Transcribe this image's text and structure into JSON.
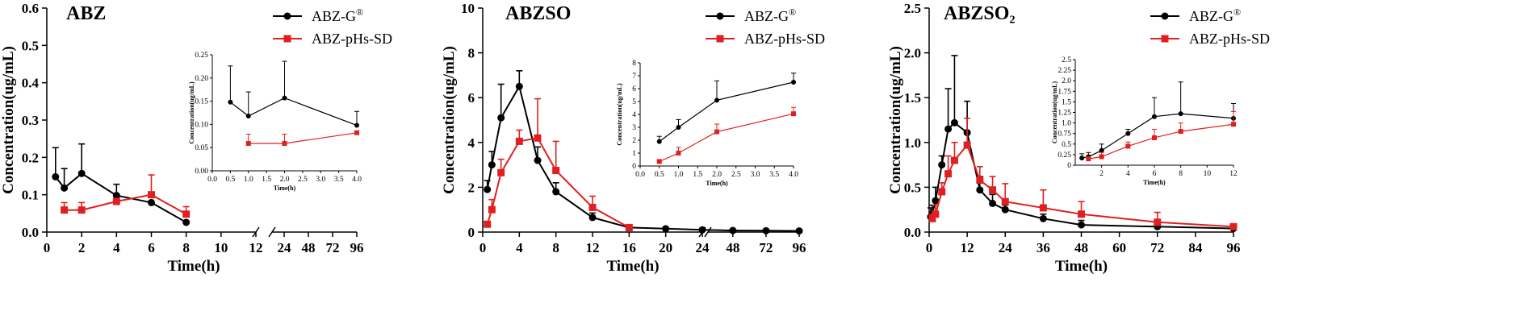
{
  "chart_data": [
    {
      "type": "line",
      "title": "ABZ",
      "xlabel": "Time(h)",
      "ylabel": "Concentration(ug/mL)",
      "ylim": [
        0,
        0.6
      ],
      "yticks": [
        "0.0",
        "0.1",
        "0.2",
        "0.3",
        "0.4",
        "0.5",
        "0.6"
      ],
      "xticks_primary": [
        "0",
        "2",
        "4",
        "6",
        "8",
        "10",
        "12"
      ],
      "xticks_secondary": [
        "24",
        "48",
        "72",
        "96"
      ],
      "colors": {
        "ABZ-G": "#000000",
        "ABZ-pHs-SD": "#e02020"
      },
      "legend": {
        "entries": [
          "ABZ-G",
          "ABZ-pHs-SD"
        ],
        "superscript": "®",
        "placement": "top-right"
      },
      "series": [
        {
          "name": "ABZ-G",
          "x": [
            0.5,
            1,
            2,
            4,
            6,
            8
          ],
          "y": [
            0.148,
            0.118,
            0.157,
            0.098,
            0.079,
            0.026
          ],
          "err": [
            0.078,
            0.052,
            0.079,
            0.03,
            0.0,
            0.0
          ]
        },
        {
          "name": "ABZ-pHs-SD",
          "x": [
            1,
            2,
            4,
            6,
            8
          ],
          "y": [
            0.059,
            0.059,
            0.082,
            0.1,
            0.048
          ],
          "err": [
            0.02,
            0.02,
            0.0,
            0.053,
            0.02
          ]
        }
      ],
      "inset": {
        "ylabel": "Concentration(ug/mL)",
        "xlabel": "Time(h)",
        "ylim": [
          0,
          0.25
        ],
        "xlim": [
          0,
          4
        ],
        "yticks": [
          "0.00",
          "0.05",
          "0.10",
          "0.15",
          "0.20",
          "0.25"
        ],
        "xticks": [
          "0.0",
          "0.5",
          "1.0",
          "1.5",
          "2.0",
          "2.5",
          "3.0",
          "3.5",
          "4.0"
        ],
        "series": [
          {
            "name": "ABZ-G",
            "x": [
              0.5,
              1,
              2,
              4
            ],
            "y": [
              0.148,
              0.118,
              0.157,
              0.098
            ],
            "err": [
              0.078,
              0.052,
              0.079,
              0.03
            ]
          },
          {
            "name": "ABZ-pHs-SD",
            "x": [
              1,
              2,
              4
            ],
            "y": [
              0.059,
              0.059,
              0.082
            ],
            "err": [
              0.02,
              0.02,
              0.0
            ]
          }
        ]
      }
    },
    {
      "type": "line",
      "title": "ABZSO",
      "xlabel": "Time(h)",
      "ylabel": "Concentration(ug/mL)",
      "ylim": [
        0,
        10
      ],
      "yticks": [
        "0",
        "2",
        "4",
        "6",
        "8",
        "10"
      ],
      "xticks_primary": [
        "0",
        "4",
        "8",
        "12",
        "16",
        "20",
        "24"
      ],
      "xticks_secondary": [
        "48",
        "72",
        "96"
      ],
      "colors": {
        "ABZ-G": "#000000",
        "ABZ-pHs-SD": "#e02020"
      },
      "legend": {
        "entries": [
          "ABZ-G",
          "ABZ-pHs-SD"
        ],
        "superscript": "®",
        "placement": "top-right"
      },
      "series": [
        {
          "name": "ABZ-G",
          "x": [
            0.5,
            1,
            2,
            4,
            6,
            8,
            12,
            16,
            20,
            24,
            48,
            72,
            96
          ],
          "y": [
            1.9,
            3.0,
            5.1,
            6.5,
            3.2,
            1.8,
            0.65,
            0.2,
            0.15,
            0.1,
            0.07,
            0.06,
            0.05
          ],
          "err": [
            0.4,
            0.6,
            1.5,
            0.7,
            0.6,
            0.4,
            0.2,
            0.05,
            0.05,
            0.05,
            0.05,
            0.05,
            0.05
          ]
        },
        {
          "name": "ABZ-pHs-SD",
          "x": [
            0.5,
            1,
            2,
            4,
            6,
            8,
            12,
            16
          ],
          "y": [
            0.35,
            1.0,
            2.65,
            4.05,
            4.2,
            2.75,
            1.1,
            0.2
          ],
          "err": [
            0.1,
            0.45,
            0.6,
            0.5,
            1.75,
            1.3,
            0.5,
            0.05
          ]
        }
      ],
      "inset": {
        "ylabel": "Concentration(ug/mL)",
        "xlabel": "Time(h)",
        "ylim": [
          0,
          8
        ],
        "xlim": [
          0,
          4
        ],
        "yticks": [
          "0",
          "1",
          "2",
          "3",
          "4",
          "5",
          "6",
          "7",
          "8"
        ],
        "xticks": [
          "0.0",
          "0.5",
          "1.0",
          "1.5",
          "2.0",
          "2.5",
          "3.0",
          "3.5",
          "4.0"
        ],
        "series": [
          {
            "name": "ABZ-G",
            "x": [
              0.5,
              1,
              2,
              4
            ],
            "y": [
              1.9,
              3.0,
              5.1,
              6.5
            ],
            "err": [
              0.4,
              0.6,
              1.5,
              0.7
            ]
          },
          {
            "name": "ABZ-pHs-SD",
            "x": [
              0.5,
              1,
              2,
              4
            ],
            "y": [
              0.35,
              1.0,
              2.65,
              4.05
            ],
            "err": [
              0.1,
              0.45,
              0.6,
              0.5
            ]
          }
        ]
      }
    },
    {
      "type": "line",
      "title": "ABZSO₂",
      "xlabel": "Time(h)",
      "ylabel": "Concentration(ug/mL)",
      "ylim": [
        0,
        2.5
      ],
      "yticks": [
        "0.0",
        "0.5",
        "1.0",
        "1.5",
        "2.0",
        "2.5"
      ],
      "xticks_primary": [
        "0",
        "12",
        "24",
        "36",
        "48",
        "60",
        "72",
        "84",
        "96"
      ],
      "xticks_secondary": [],
      "colors": {
        "ABZ-G": "#000000",
        "ABZ-pHs-SD": "#e02020"
      },
      "legend": {
        "entries": [
          "ABZ-G",
          "ABZ-pHs-SD"
        ],
        "superscript": "®",
        "placement": "top-right"
      },
      "series": [
        {
          "name": "ABZ-G",
          "x": [
            0.5,
            1,
            2,
            4,
            6,
            8,
            12,
            16,
            20,
            24,
            36,
            48,
            72,
            96
          ],
          "y": [
            0.17,
            0.2,
            0.35,
            0.75,
            1.15,
            1.22,
            1.11,
            0.47,
            0.32,
            0.25,
            0.15,
            0.08,
            0.06,
            0.04
          ],
          "err": [
            0.1,
            0.1,
            0.15,
            0.1,
            0.45,
            0.75,
            0.35,
            0.15,
            0.1,
            0.05,
            0.05,
            0.05,
            0.02,
            0.01
          ]
        },
        {
          "name": "ABZ-pHs-SD",
          "x": [
            1,
            2,
            4,
            6,
            8,
            12,
            16,
            20,
            24,
            36,
            48,
            72,
            96
          ],
          "y": [
            0.15,
            0.2,
            0.45,
            0.65,
            0.8,
            0.97,
            0.58,
            0.47,
            0.34,
            0.27,
            0.2,
            0.11,
            0.06
          ],
          "err": [
            0.05,
            0.1,
            0.1,
            0.2,
            0.2,
            0.3,
            0.15,
            0.15,
            0.2,
            0.2,
            0.14,
            0.11,
            0.03
          ]
        }
      ],
      "inset": {
        "ylabel": "Concentration(ug/mL)",
        "xlabel": "Time(h)",
        "ylim": [
          0,
          2.5
        ],
        "xlim": [
          0,
          12
        ],
        "yticks": [
          "0",
          "0.25",
          "0.5",
          "0.75",
          "1.0",
          "1.25",
          "1.5",
          "1.75",
          "2.0",
          "2.25",
          "2.5"
        ],
        "xticks": [
          "2",
          "4",
          "6",
          "8",
          "10",
          "12"
        ],
        "series": [
          {
            "name": "ABZ-G",
            "x": [
              0.5,
              1,
              2,
              4,
              6,
              8,
              12
            ],
            "y": [
              0.17,
              0.2,
              0.35,
              0.75,
              1.15,
              1.22,
              1.11
            ],
            "err": [
              0.1,
              0.1,
              0.15,
              0.1,
              0.45,
              0.75,
              0.35
            ]
          },
          {
            "name": "ABZ-pHs-SD",
            "x": [
              1,
              2,
              4,
              6,
              8,
              12
            ],
            "y": [
              0.15,
              0.2,
              0.45,
              0.65,
              0.8,
              0.97
            ],
            "err": [
              0.05,
              0.1,
              0.1,
              0.2,
              0.2,
              0.3
            ]
          }
        ]
      }
    }
  ]
}
